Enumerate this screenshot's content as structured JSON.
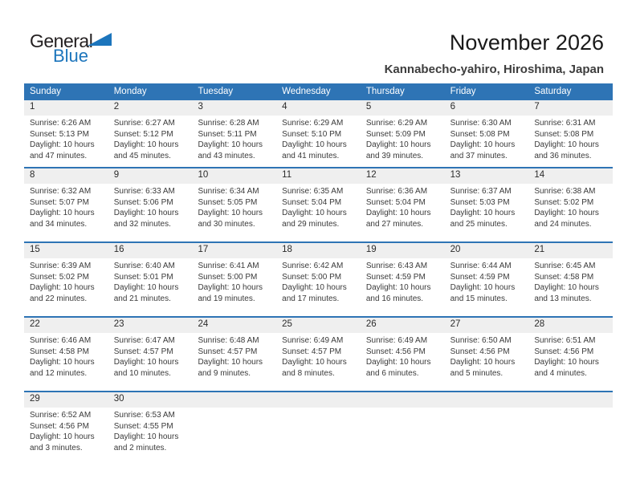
{
  "logo": {
    "general": "General",
    "blue": "Blue"
  },
  "header": {
    "title": "November 2026",
    "subtitle": "Kannabecho-yahiro, Hiroshima, Japan"
  },
  "colors": {
    "accent_blue": "#2e74b5",
    "logo_blue": "#1c75bc",
    "band_gray": "#efefef",
    "header_text": "#ffffff",
    "body_text": "#3a3a3a"
  },
  "weekdays": [
    "Sunday",
    "Monday",
    "Tuesday",
    "Wednesday",
    "Thursday",
    "Friday",
    "Saturday"
  ],
  "weeks": [
    [
      {
        "day": "1",
        "sunrise": "Sunrise: 6:26 AM",
        "sunset": "Sunset: 5:13 PM",
        "daylight": "Daylight: 10 hours and 47 minutes."
      },
      {
        "day": "2",
        "sunrise": "Sunrise: 6:27 AM",
        "sunset": "Sunset: 5:12 PM",
        "daylight": "Daylight: 10 hours and 45 minutes."
      },
      {
        "day": "3",
        "sunrise": "Sunrise: 6:28 AM",
        "sunset": "Sunset: 5:11 PM",
        "daylight": "Daylight: 10 hours and 43 minutes."
      },
      {
        "day": "4",
        "sunrise": "Sunrise: 6:29 AM",
        "sunset": "Sunset: 5:10 PM",
        "daylight": "Daylight: 10 hours and 41 minutes."
      },
      {
        "day": "5",
        "sunrise": "Sunrise: 6:29 AM",
        "sunset": "Sunset: 5:09 PM",
        "daylight": "Daylight: 10 hours and 39 minutes."
      },
      {
        "day": "6",
        "sunrise": "Sunrise: 6:30 AM",
        "sunset": "Sunset: 5:08 PM",
        "daylight": "Daylight: 10 hours and 37 minutes."
      },
      {
        "day": "7",
        "sunrise": "Sunrise: 6:31 AM",
        "sunset": "Sunset: 5:08 PM",
        "daylight": "Daylight: 10 hours and 36 minutes."
      }
    ],
    [
      {
        "day": "8",
        "sunrise": "Sunrise: 6:32 AM",
        "sunset": "Sunset: 5:07 PM",
        "daylight": "Daylight: 10 hours and 34 minutes."
      },
      {
        "day": "9",
        "sunrise": "Sunrise: 6:33 AM",
        "sunset": "Sunset: 5:06 PM",
        "daylight": "Daylight: 10 hours and 32 minutes."
      },
      {
        "day": "10",
        "sunrise": "Sunrise: 6:34 AM",
        "sunset": "Sunset: 5:05 PM",
        "daylight": "Daylight: 10 hours and 30 minutes."
      },
      {
        "day": "11",
        "sunrise": "Sunrise: 6:35 AM",
        "sunset": "Sunset: 5:04 PM",
        "daylight": "Daylight: 10 hours and 29 minutes."
      },
      {
        "day": "12",
        "sunrise": "Sunrise: 6:36 AM",
        "sunset": "Sunset: 5:04 PM",
        "daylight": "Daylight: 10 hours and 27 minutes."
      },
      {
        "day": "13",
        "sunrise": "Sunrise: 6:37 AM",
        "sunset": "Sunset: 5:03 PM",
        "daylight": "Daylight: 10 hours and 25 minutes."
      },
      {
        "day": "14",
        "sunrise": "Sunrise: 6:38 AM",
        "sunset": "Sunset: 5:02 PM",
        "daylight": "Daylight: 10 hours and 24 minutes."
      }
    ],
    [
      {
        "day": "15",
        "sunrise": "Sunrise: 6:39 AM",
        "sunset": "Sunset: 5:02 PM",
        "daylight": "Daylight: 10 hours and 22 minutes."
      },
      {
        "day": "16",
        "sunrise": "Sunrise: 6:40 AM",
        "sunset": "Sunset: 5:01 PM",
        "daylight": "Daylight: 10 hours and 21 minutes."
      },
      {
        "day": "17",
        "sunrise": "Sunrise: 6:41 AM",
        "sunset": "Sunset: 5:00 PM",
        "daylight": "Daylight: 10 hours and 19 minutes."
      },
      {
        "day": "18",
        "sunrise": "Sunrise: 6:42 AM",
        "sunset": "Sunset: 5:00 PM",
        "daylight": "Daylight: 10 hours and 17 minutes."
      },
      {
        "day": "19",
        "sunrise": "Sunrise: 6:43 AM",
        "sunset": "Sunset: 4:59 PM",
        "daylight": "Daylight: 10 hours and 16 minutes."
      },
      {
        "day": "20",
        "sunrise": "Sunrise: 6:44 AM",
        "sunset": "Sunset: 4:59 PM",
        "daylight": "Daylight: 10 hours and 15 minutes."
      },
      {
        "day": "21",
        "sunrise": "Sunrise: 6:45 AM",
        "sunset": "Sunset: 4:58 PM",
        "daylight": "Daylight: 10 hours and 13 minutes."
      }
    ],
    [
      {
        "day": "22",
        "sunrise": "Sunrise: 6:46 AM",
        "sunset": "Sunset: 4:58 PM",
        "daylight": "Daylight: 10 hours and 12 minutes."
      },
      {
        "day": "23",
        "sunrise": "Sunrise: 6:47 AM",
        "sunset": "Sunset: 4:57 PM",
        "daylight": "Daylight: 10 hours and 10 minutes."
      },
      {
        "day": "24",
        "sunrise": "Sunrise: 6:48 AM",
        "sunset": "Sunset: 4:57 PM",
        "daylight": "Daylight: 10 hours and 9 minutes."
      },
      {
        "day": "25",
        "sunrise": "Sunrise: 6:49 AM",
        "sunset": "Sunset: 4:57 PM",
        "daylight": "Daylight: 10 hours and 8 minutes."
      },
      {
        "day": "26",
        "sunrise": "Sunrise: 6:49 AM",
        "sunset": "Sunset: 4:56 PM",
        "daylight": "Daylight: 10 hours and 6 minutes."
      },
      {
        "day": "27",
        "sunrise": "Sunrise: 6:50 AM",
        "sunset": "Sunset: 4:56 PM",
        "daylight": "Daylight: 10 hours and 5 minutes."
      },
      {
        "day": "28",
        "sunrise": "Sunrise: 6:51 AM",
        "sunset": "Sunset: 4:56 PM",
        "daylight": "Daylight: 10 hours and 4 minutes."
      }
    ],
    [
      {
        "day": "29",
        "sunrise": "Sunrise: 6:52 AM",
        "sunset": "Sunset: 4:56 PM",
        "daylight": "Daylight: 10 hours and 3 minutes."
      },
      {
        "day": "30",
        "sunrise": "Sunrise: 6:53 AM",
        "sunset": "Sunset: 4:55 PM",
        "daylight": "Daylight: 10 hours and 2 minutes."
      },
      {},
      {},
      {},
      {},
      {}
    ]
  ]
}
